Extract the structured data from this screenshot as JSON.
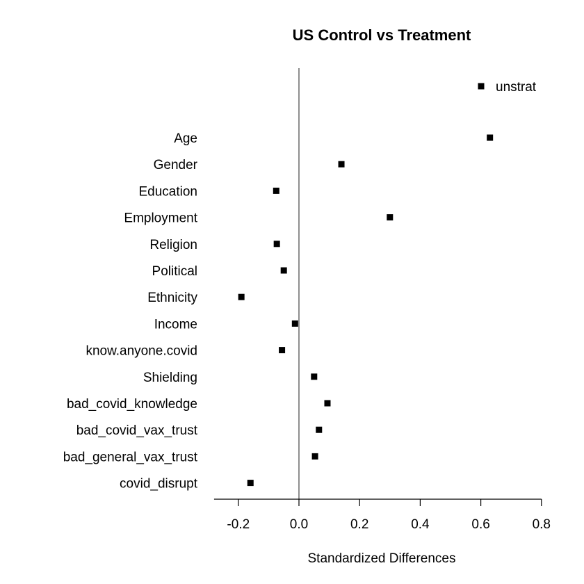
{
  "chart_data": {
    "type": "scatter",
    "title": "US Control vs Treatment",
    "xlabel": "Standardized Differences",
    "ylabel": "",
    "xlim": [
      -0.28,
      0.8
    ],
    "x_ticks": [
      "-0.2",
      "0.0",
      "0.2",
      "0.4",
      "0.6",
      "0.8"
    ],
    "x_tick_values": [
      -0.2,
      0.0,
      0.2,
      0.4,
      0.6,
      0.8
    ],
    "reference_line_x": 0,
    "grid": false,
    "legend_position": "top-right",
    "categories": [
      "Age",
      "Gender",
      "Education",
      "Employment",
      "Religion",
      "Political",
      "Ethnicity",
      "Income",
      "know.anyone.covid",
      "Shielding",
      "bad_covid_knowledge",
      "bad_covid_vax_trust",
      "bad_general_vax_trust",
      "covid_disrupt"
    ],
    "series": [
      {
        "name": "unstrat",
        "marker": "square",
        "color": "#000000",
        "values": [
          0.63,
          0.14,
          -0.075,
          0.3,
          -0.073,
          -0.05,
          -0.19,
          -0.013,
          -0.056,
          0.05,
          0.094,
          0.066,
          0.053,
          -0.16
        ]
      }
    ]
  }
}
